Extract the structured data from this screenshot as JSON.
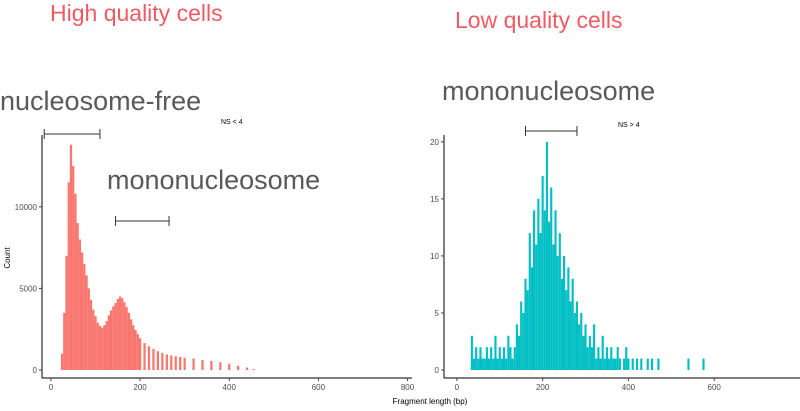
{
  "colors": {
    "high_fill": "#F8766D",
    "low_fill": "#00BFC4",
    "title_color": "#F05A64",
    "annotation_color": "#595959"
  },
  "x_axis_title": "Fragment length (bp)",
  "chart_data": [
    {
      "type": "bar",
      "panel_title": "High quality cells",
      "ns_label": "NS < 4",
      "ylabel": "Count",
      "xlim": [
        -20,
        810
      ],
      "ylim": [
        0,
        14400
      ],
      "xticks": [
        0,
        200,
        400,
        600,
        800
      ],
      "yticks": [
        0,
        5000,
        10000
      ],
      "grid": false,
      "annotations": [
        {
          "text": "nucleosome-free",
          "bracket_x": [
            -15,
            110
          ]
        },
        {
          "text": "mononucleosome",
          "bracket_x": [
            145,
            265
          ]
        }
      ],
      "bins": [
        {
          "x": 25,
          "y": 1000
        },
        {
          "x": 30,
          "y": 3500
        },
        {
          "x": 35,
          "y": 7000
        },
        {
          "x": 40,
          "y": 11500
        },
        {
          "x": 45,
          "y": 13800
        },
        {
          "x": 50,
          "y": 12500
        },
        {
          "x": 55,
          "y": 10800
        },
        {
          "x": 60,
          "y": 9000
        },
        {
          "x": 65,
          "y": 8000
        },
        {
          "x": 70,
          "y": 7200
        },
        {
          "x": 75,
          "y": 6500
        },
        {
          "x": 80,
          "y": 5800
        },
        {
          "x": 85,
          "y": 5000
        },
        {
          "x": 90,
          "y": 4300
        },
        {
          "x": 95,
          "y": 3700
        },
        {
          "x": 100,
          "y": 3300
        },
        {
          "x": 105,
          "y": 2900
        },
        {
          "x": 110,
          "y": 2700
        },
        {
          "x": 115,
          "y": 2600
        },
        {
          "x": 120,
          "y": 2750
        },
        {
          "x": 125,
          "y": 3000
        },
        {
          "x": 130,
          "y": 3350
        },
        {
          "x": 135,
          "y": 3650
        },
        {
          "x": 140,
          "y": 3900
        },
        {
          "x": 145,
          "y": 4100
        },
        {
          "x": 150,
          "y": 4350
        },
        {
          "x": 155,
          "y": 4500
        },
        {
          "x": 160,
          "y": 4400
        },
        {
          "x": 165,
          "y": 4150
        },
        {
          "x": 170,
          "y": 3850
        },
        {
          "x": 175,
          "y": 3500
        },
        {
          "x": 180,
          "y": 3100
        },
        {
          "x": 185,
          "y": 2750
        },
        {
          "x": 190,
          "y": 2450
        },
        {
          "x": 195,
          "y": 2200
        },
        {
          "x": 200,
          "y": 1950
        },
        {
          "x": 210,
          "y": 1650
        },
        {
          "x": 220,
          "y": 1450
        },
        {
          "x": 230,
          "y": 1300
        },
        {
          "x": 240,
          "y": 1150
        },
        {
          "x": 250,
          "y": 1050
        },
        {
          "x": 260,
          "y": 950
        },
        {
          "x": 270,
          "y": 900
        },
        {
          "x": 280,
          "y": 850
        },
        {
          "x": 290,
          "y": 800
        },
        {
          "x": 300,
          "y": 750
        },
        {
          "x": 320,
          "y": 700
        },
        {
          "x": 340,
          "y": 620
        },
        {
          "x": 360,
          "y": 560
        },
        {
          "x": 380,
          "y": 480
        },
        {
          "x": 400,
          "y": 380
        },
        {
          "x": 420,
          "y": 260
        },
        {
          "x": 440,
          "y": 150
        },
        {
          "x": 455,
          "y": 60
        }
      ]
    },
    {
      "type": "bar",
      "panel_title": "Low quality cells",
      "ns_label": "NS > 4",
      "ylabel": "",
      "xlim": [
        -30,
        800
      ],
      "ylim": [
        0,
        20.6
      ],
      "xticks": [
        0,
        200,
        400,
        600
      ],
      "yticks": [
        0,
        5,
        10,
        15,
        20
      ],
      "grid": false,
      "annotations": [
        {
          "text": "mononucleosome",
          "bracket_x": [
            160,
            280
          ]
        }
      ],
      "bins": [
        {
          "x": 35,
          "y": 3
        },
        {
          "x": 40,
          "y": 1
        },
        {
          "x": 45,
          "y": 2
        },
        {
          "x": 50,
          "y": 1
        },
        {
          "x": 55,
          "y": 2
        },
        {
          "x": 60,
          "y": 1
        },
        {
          "x": 65,
          "y": 1
        },
        {
          "x": 70,
          "y": 2
        },
        {
          "x": 75,
          "y": 1
        },
        {
          "x": 80,
          "y": 2
        },
        {
          "x": 85,
          "y": 1
        },
        {
          "x": 90,
          "y": 3
        },
        {
          "x": 95,
          "y": 1
        },
        {
          "x": 100,
          "y": 2
        },
        {
          "x": 105,
          "y": 1
        },
        {
          "x": 110,
          "y": 2
        },
        {
          "x": 115,
          "y": 1
        },
        {
          "x": 120,
          "y": 3
        },
        {
          "x": 125,
          "y": 2
        },
        {
          "x": 130,
          "y": 1
        },
        {
          "x": 135,
          "y": 2
        },
        {
          "x": 140,
          "y": 4
        },
        {
          "x": 145,
          "y": 3
        },
        {
          "x": 150,
          "y": 6
        },
        {
          "x": 155,
          "y": 5
        },
        {
          "x": 160,
          "y": 8
        },
        {
          "x": 165,
          "y": 7
        },
        {
          "x": 170,
          "y": 12
        },
        {
          "x": 175,
          "y": 9
        },
        {
          "x": 180,
          "y": 14
        },
        {
          "x": 185,
          "y": 11
        },
        {
          "x": 190,
          "y": 15
        },
        {
          "x": 195,
          "y": 12
        },
        {
          "x": 200,
          "y": 17
        },
        {
          "x": 205,
          "y": 14
        },
        {
          "x": 210,
          "y": 20
        },
        {
          "x": 215,
          "y": 13
        },
        {
          "x": 220,
          "y": 16
        },
        {
          "x": 225,
          "y": 11
        },
        {
          "x": 230,
          "y": 14
        },
        {
          "x": 235,
          "y": 10
        },
        {
          "x": 240,
          "y": 12
        },
        {
          "x": 245,
          "y": 8
        },
        {
          "x": 250,
          "y": 10
        },
        {
          "x": 255,
          "y": 7
        },
        {
          "x": 260,
          "y": 9
        },
        {
          "x": 265,
          "y": 6
        },
        {
          "x": 270,
          "y": 8
        },
        {
          "x": 275,
          "y": 5
        },
        {
          "x": 280,
          "y": 6
        },
        {
          "x": 285,
          "y": 4
        },
        {
          "x": 290,
          "y": 5
        },
        {
          "x": 295,
          "y": 3
        },
        {
          "x": 300,
          "y": 4
        },
        {
          "x": 305,
          "y": 2
        },
        {
          "x": 310,
          "y": 3
        },
        {
          "x": 315,
          "y": 2
        },
        {
          "x": 320,
          "y": 4
        },
        {
          "x": 325,
          "y": 1
        },
        {
          "x": 330,
          "y": 2
        },
        {
          "x": 335,
          "y": 1
        },
        {
          "x": 340,
          "y": 3
        },
        {
          "x": 345,
          "y": 1
        },
        {
          "x": 350,
          "y": 2
        },
        {
          "x": 355,
          "y": 1
        },
        {
          "x": 360,
          "y": 2
        },
        {
          "x": 365,
          "y": 1
        },
        {
          "x": 370,
          "y": 1
        },
        {
          "x": 375,
          "y": 2
        },
        {
          "x": 380,
          "y": 1
        },
        {
          "x": 390,
          "y": 1
        },
        {
          "x": 395,
          "y": 2
        },
        {
          "x": 400,
          "y": 1
        },
        {
          "x": 410,
          "y": 1
        },
        {
          "x": 420,
          "y": 1
        },
        {
          "x": 430,
          "y": 1
        },
        {
          "x": 445,
          "y": 1
        },
        {
          "x": 455,
          "y": 1
        },
        {
          "x": 470,
          "y": 1
        },
        {
          "x": 540,
          "y": 1
        },
        {
          "x": 575,
          "y": 1
        }
      ]
    }
  ]
}
